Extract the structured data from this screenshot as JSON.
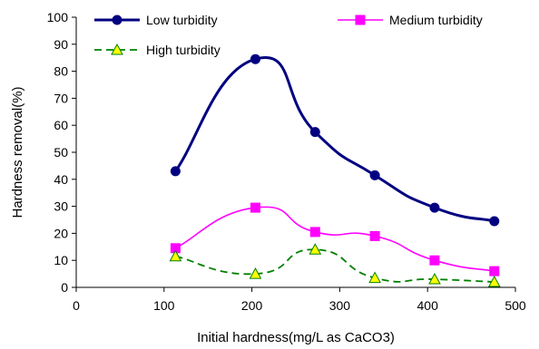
{
  "chart_data": {
    "type": "line",
    "xlabel": "Initial hardness(mg/L as CaCO3)",
    "ylabel": "Hardness removal(%)",
    "xlim": [
      0,
      500
    ],
    "ylim": [
      0,
      100
    ],
    "xticks": [
      0,
      100,
      200,
      300,
      400,
      500
    ],
    "yticks": [
      0,
      10,
      20,
      30,
      40,
      50,
      60,
      70,
      80,
      90,
      100
    ],
    "grid": false,
    "smooth": true,
    "legend_position": "top",
    "series": [
      {
        "name": "Low turbidity",
        "color": "#000080",
        "marker": "circle",
        "line_style": "solid",
        "x": [
          113,
          204,
          272,
          340,
          408,
          476
        ],
        "y": [
          43,
          84.5,
          57.5,
          41.5,
          29.5,
          24.5
        ]
      },
      {
        "name": "Medium turbidity",
        "color": "#FF00FF",
        "marker": "square",
        "line_style": "solid",
        "x": [
          113,
          204,
          272,
          340,
          408,
          476
        ],
        "y": [
          14.5,
          29.5,
          20.5,
          19,
          10,
          6
        ]
      },
      {
        "name": "High turbidity",
        "color": "#008000",
        "marker_fill": "#FFFF00",
        "marker": "triangle",
        "line_style": "dashed",
        "x": [
          113,
          204,
          272,
          340,
          408,
          476
        ],
        "y": [
          11.5,
          5,
          14,
          3.5,
          3,
          2
        ]
      }
    ]
  }
}
